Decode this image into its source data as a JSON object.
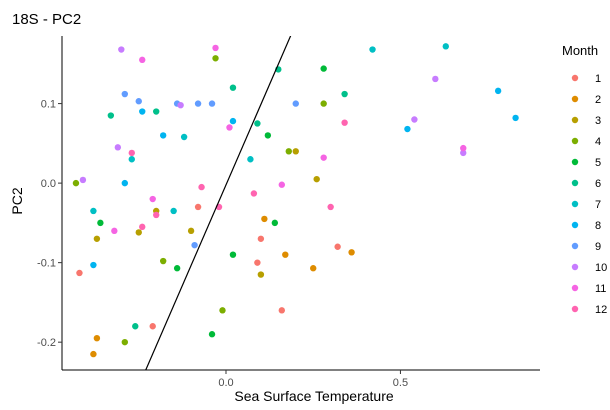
{
  "chart_data": {
    "type": "scatter",
    "title": "18S - PC2",
    "xlabel": "Sea Surface Temperature",
    "ylabel": "PC2",
    "xlim": [
      -0.47,
      0.9
    ],
    "ylim": [
      -0.235,
      0.185
    ],
    "x_ticks": [
      {
        "value": 0.0,
        "label": "0.0"
      },
      {
        "value": 0.5,
        "label": "0.5"
      }
    ],
    "y_ticks": [
      {
        "value": -0.2,
        "label": "-0.2"
      },
      {
        "value": -0.1,
        "label": "-0.1"
      },
      {
        "value": 0.0,
        "label": "0.0"
      },
      {
        "value": 0.1,
        "label": "0.1"
      }
    ],
    "grid": false,
    "legend": {
      "title": "Month",
      "position": "right"
    },
    "trend_line": {
      "x": [
        -0.23,
        0.19
      ],
      "y": [
        -0.235,
        0.19
      ]
    },
    "series": [
      {
        "name": "1",
        "color": "#F8766D",
        "points": [
          [
            -0.42,
            -0.113
          ],
          [
            -0.21,
            -0.18
          ],
          [
            -0.08,
            -0.03
          ],
          [
            0.1,
            -0.07
          ],
          [
            0.16,
            -0.16
          ],
          [
            0.32,
            -0.08
          ],
          [
            0.09,
            -0.1
          ]
        ]
      },
      {
        "name": "2",
        "color": "#DE8C00",
        "points": [
          [
            -0.38,
            -0.215
          ],
          [
            -0.37,
            -0.195
          ],
          [
            0.11,
            -0.045
          ],
          [
            0.25,
            -0.107
          ],
          [
            0.17,
            -0.09
          ],
          [
            0.36,
            -0.087
          ]
        ]
      },
      {
        "name": "3",
        "color": "#B79F00",
        "points": [
          [
            -0.37,
            -0.07
          ],
          [
            -0.25,
            -0.062
          ],
          [
            -0.2,
            -0.035
          ],
          [
            -0.1,
            -0.06
          ],
          [
            0.1,
            -0.115
          ],
          [
            0.2,
            0.04
          ],
          [
            0.26,
            0.005
          ]
        ]
      },
      {
        "name": "4",
        "color": "#7CAE00",
        "points": [
          [
            -0.43,
            0.0
          ],
          [
            -0.29,
            -0.2
          ],
          [
            -0.18,
            -0.098
          ],
          [
            -0.03,
            0.157
          ],
          [
            -0.01,
            -0.16
          ],
          [
            0.18,
            0.04
          ],
          [
            0.28,
            0.1
          ]
        ]
      },
      {
        "name": "5",
        "color": "#00BA38",
        "points": [
          [
            -0.36,
            -0.05
          ],
          [
            -0.14,
            -0.107
          ],
          [
            -0.04,
            -0.19
          ],
          [
            0.02,
            -0.09
          ],
          [
            0.12,
            0.06
          ],
          [
            0.14,
            -0.05
          ],
          [
            0.28,
            0.144
          ]
        ]
      },
      {
        "name": "6",
        "color": "#00C08B",
        "points": [
          [
            -0.33,
            0.085
          ],
          [
            -0.26,
            -0.18
          ],
          [
            -0.2,
            0.09
          ],
          [
            0.02,
            0.12
          ],
          [
            0.15,
            0.143
          ],
          [
            0.34,
            0.112
          ],
          [
            0.09,
            0.075
          ]
        ]
      },
      {
        "name": "7",
        "color": "#00BFC4",
        "points": [
          [
            -0.38,
            -0.035
          ],
          [
            -0.27,
            0.03
          ],
          [
            -0.15,
            -0.035
          ],
          [
            -0.12,
            0.058
          ],
          [
            0.07,
            0.03
          ],
          [
            0.42,
            0.168
          ],
          [
            0.63,
            0.172
          ]
        ]
      },
      {
        "name": "8",
        "color": "#00B4F0",
        "points": [
          [
            -0.38,
            -0.103
          ],
          [
            -0.29,
            0.0
          ],
          [
            -0.24,
            0.09
          ],
          [
            -0.18,
            0.06
          ],
          [
            0.02,
            0.078
          ],
          [
            0.52,
            0.068
          ],
          [
            0.78,
            0.116
          ],
          [
            0.83,
            0.082
          ]
        ]
      },
      {
        "name": "9",
        "color": "#619CFF",
        "points": [
          [
            -0.29,
            0.112
          ],
          [
            -0.25,
            0.103
          ],
          [
            -0.14,
            0.1
          ],
          [
            -0.08,
            0.1
          ],
          [
            -0.04,
            0.1
          ],
          [
            0.2,
            0.1
          ],
          [
            -0.09,
            -0.078
          ]
        ]
      },
      {
        "name": "10",
        "color": "#C77CFF",
        "points": [
          [
            -0.41,
            0.004
          ],
          [
            -0.3,
            0.168
          ],
          [
            -0.31,
            0.045
          ],
          [
            -0.13,
            0.098
          ],
          [
            0.54,
            0.08
          ],
          [
            0.6,
            0.131
          ],
          [
            0.68,
            0.038
          ]
        ]
      },
      {
        "name": "11",
        "color": "#F564E3",
        "points": [
          [
            -0.24,
            0.155
          ],
          [
            -0.32,
            -0.06
          ],
          [
            -0.21,
            -0.02
          ],
          [
            -0.03,
            0.17
          ],
          [
            0.01,
            0.07
          ],
          [
            0.16,
            -0.002
          ],
          [
            0.68,
            0.044
          ],
          [
            0.28,
            0.032
          ]
        ]
      },
      {
        "name": "12",
        "color": "#FF64B0",
        "points": [
          [
            -0.27,
            0.038
          ],
          [
            -0.24,
            -0.055
          ],
          [
            -0.2,
            -0.04
          ],
          [
            -0.07,
            -0.005
          ],
          [
            -0.02,
            -0.03
          ],
          [
            0.08,
            -0.013
          ],
          [
            0.3,
            -0.03
          ],
          [
            0.34,
            0.076
          ]
        ]
      }
    ]
  }
}
